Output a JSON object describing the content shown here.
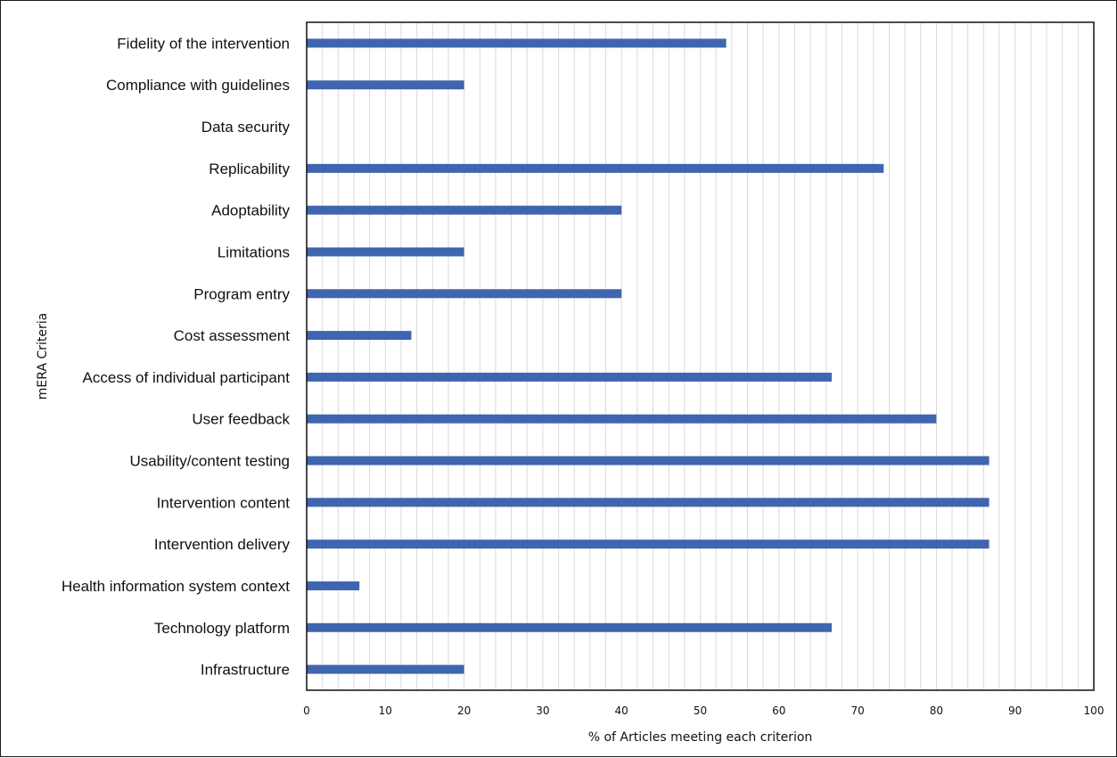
{
  "chart_data": {
    "type": "bar",
    "orientation": "horizontal",
    "categories": [
      "Fidelity of the intervention",
      "Compliance with guidelines",
      "Data security",
      "Replicability",
      "Adoptability",
      "Limitations",
      "Program entry",
      "Cost assessment ",
      "Access of individual participant",
      "User feedback",
      "Usability/content testing ",
      "Intervention content",
      "Intervention delivery",
      "Health information system context",
      "Technology platform",
      "Infrastructure"
    ],
    "values": [
      53.3,
      20,
      0,
      73.3,
      40,
      20,
      40,
      13.3,
      66.7,
      80,
      86.7,
      86.7,
      86.7,
      6.7,
      66.7,
      20
    ],
    "xlabel": "% of Articles meeting each criterion",
    "ylabel": "mERA Criteria",
    "xlim": [
      0,
      100
    ],
    "xticks": [
      0,
      10,
      20,
      30,
      40,
      50,
      60,
      70,
      80,
      90,
      100
    ],
    "grid": "vertical minor gridlines",
    "bar_color": "#4065b0",
    "grid_color": "#d9d9d9",
    "axis_color": "#111111"
  }
}
